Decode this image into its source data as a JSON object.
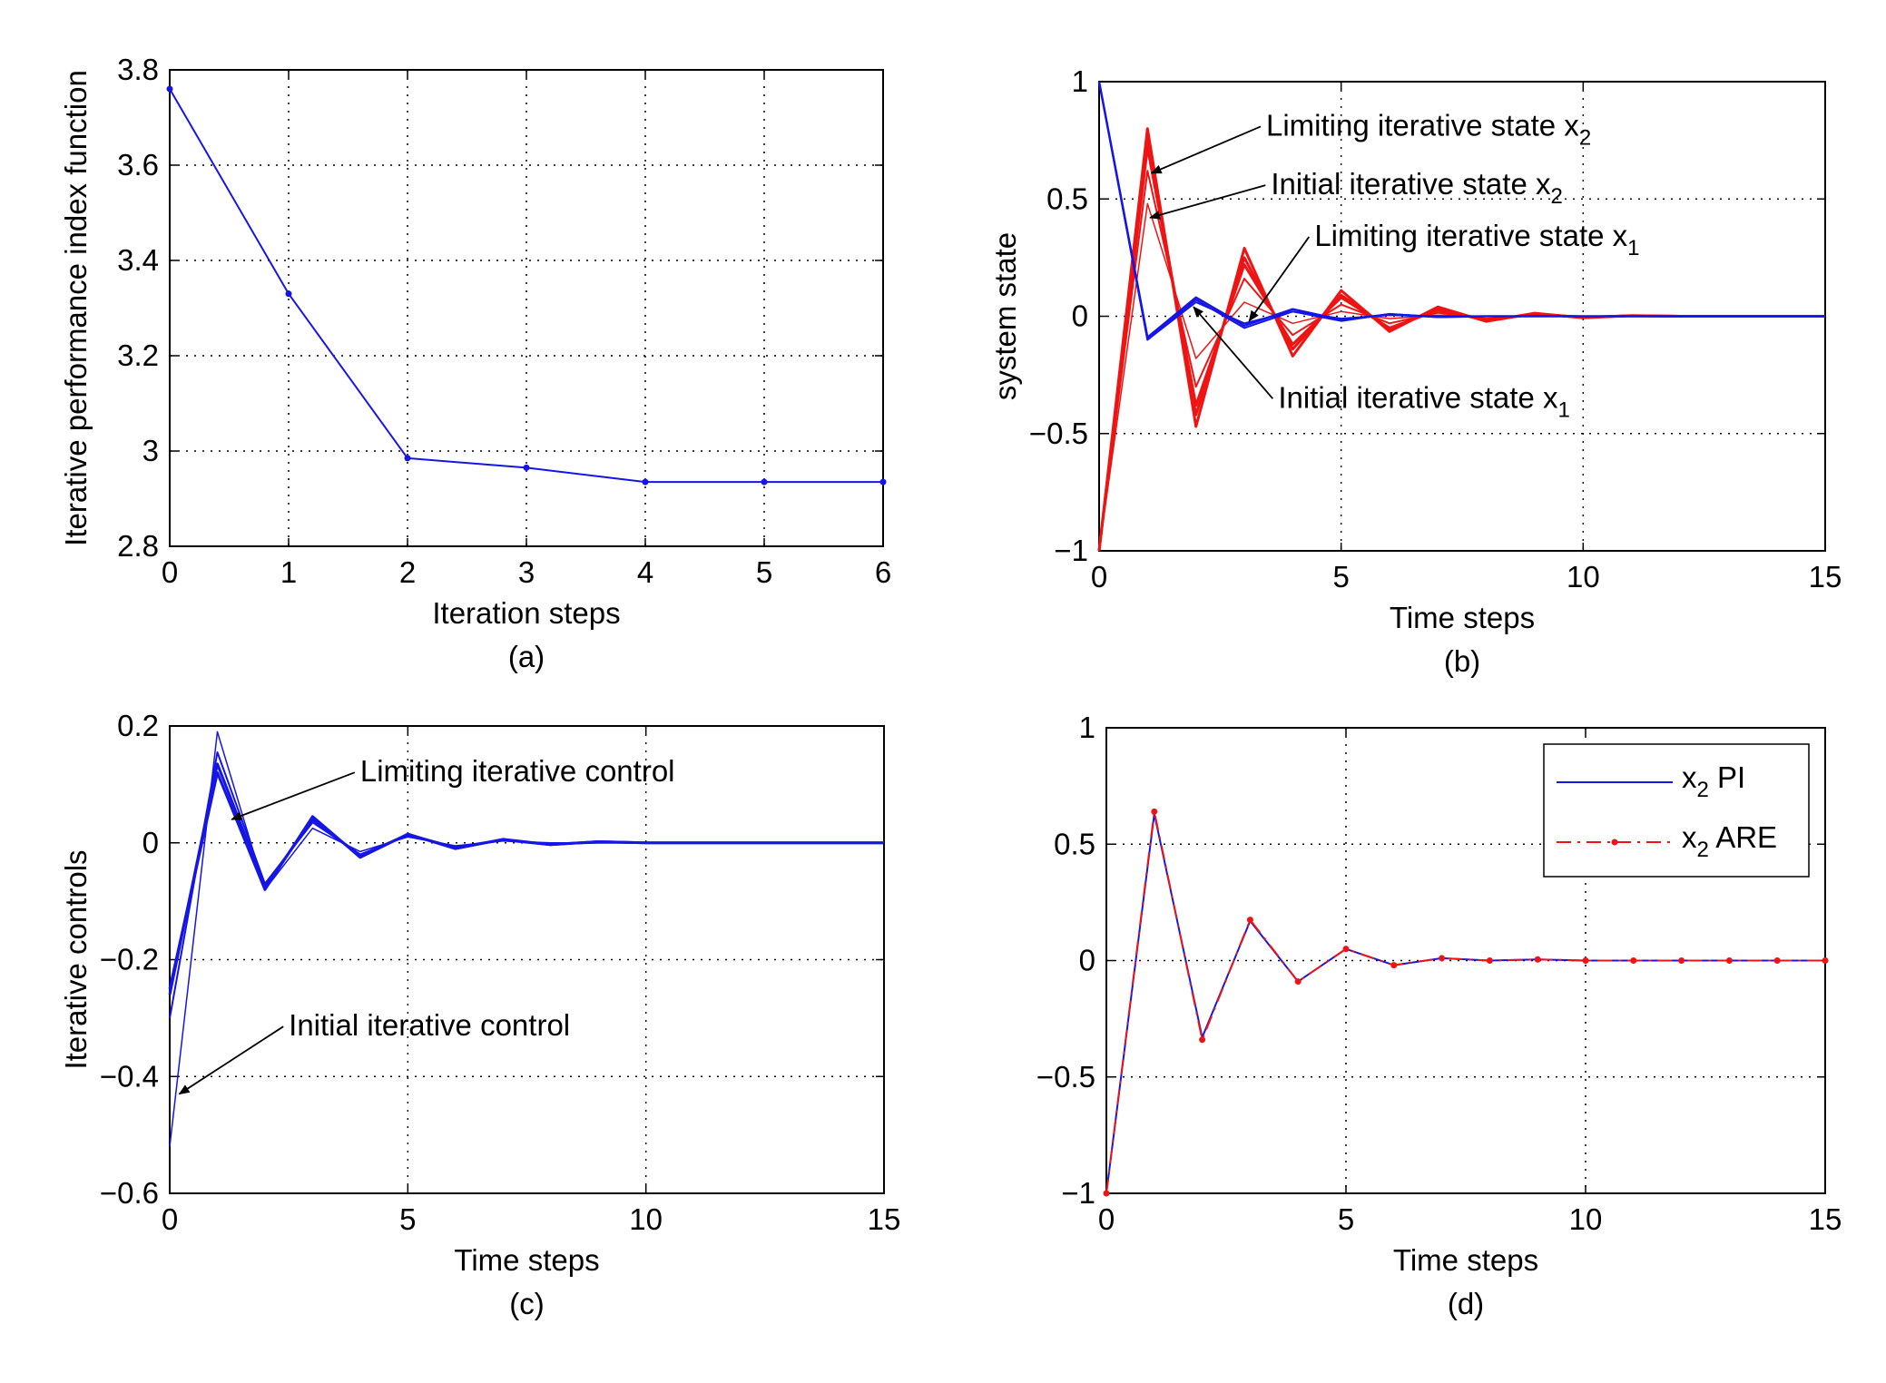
{
  "colors": {
    "blue": "#1515e6",
    "red": "#ee1414",
    "black": "#000000"
  },
  "chart_data": [
    {
      "id": "a",
      "type": "line",
      "caption": "(a)",
      "xlabel": "Iteration steps",
      "ylabel": "Iterative performance index function",
      "xlim": [
        0,
        6
      ],
      "ylim": [
        2.8,
        3.8
      ],
      "xticks": [
        0,
        1,
        2,
        3,
        4,
        5,
        6
      ],
      "xtick_labels": [
        "0",
        "1",
        "2",
        "3",
        "4",
        "5",
        "6"
      ],
      "yticks": [
        2.8,
        3.0,
        3.2,
        3.4,
        3.6,
        3.8
      ],
      "ytick_labels": [
        "2.8",
        "3",
        "3.2",
        "3.4",
        "3.6",
        "3.8"
      ],
      "grid": true,
      "series": [
        {
          "x": [
            0,
            1,
            2,
            3,
            4,
            5,
            6
          ],
          "y": [
            3.76,
            3.33,
            2.985,
            2.965,
            2.935,
            2.935,
            2.935
          ],
          "color": "blue",
          "width": 2,
          "markers": true
        }
      ]
    },
    {
      "id": "b",
      "type": "line",
      "caption": "(b)",
      "xlabel": "Time steps",
      "ylabel": "system state",
      "xlim": [
        0,
        15
      ],
      "ylim": [
        -1,
        1
      ],
      "xticks": [
        0,
        5,
        10,
        15
      ],
      "xtick_labels": [
        "0",
        "5",
        "10",
        "15"
      ],
      "yticks": [
        -1,
        -0.5,
        0,
        0.5,
        1
      ],
      "ytick_labels": [
        "−1",
        "−0.5",
        "0",
        "0.5",
        "1"
      ],
      "grid": true,
      "series": [
        {
          "x": [
            0,
            1,
            2,
            3,
            4,
            5,
            6,
            7,
            8,
            9,
            10,
            11,
            12,
            13,
            14,
            15
          ],
          "y": [
            -1,
            0.48,
            -0.18,
            0.06,
            -0.03,
            0.02,
            -0.01,
            0.005,
            0,
            0,
            0,
            0,
            0,
            0,
            0,
            0
          ],
          "color": "red",
          "width": 1.5
        },
        {
          "x": [
            0,
            1,
            2,
            3,
            4,
            5,
            6,
            7,
            8,
            9,
            10,
            11,
            12,
            13,
            14,
            15
          ],
          "y": [
            -1,
            0.62,
            -0.3,
            0.16,
            -0.08,
            0.05,
            -0.03,
            0.015,
            -0.01,
            0.005,
            0,
            0,
            0,
            0,
            0,
            0
          ],
          "color": "red",
          "width": 2
        },
        {
          "x": [
            0,
            1,
            2,
            3,
            4,
            5,
            6,
            7,
            8,
            9,
            10,
            11,
            12,
            13,
            14,
            15
          ],
          "y": [
            -1,
            0.72,
            -0.38,
            0.22,
            -0.12,
            0.08,
            -0.05,
            0.025,
            -0.015,
            0.008,
            -0.004,
            0.002,
            0,
            0,
            0,
            0
          ],
          "color": "red",
          "width": 3
        },
        {
          "x": [
            0,
            1,
            2,
            3,
            4,
            5,
            6,
            7,
            8,
            9,
            10,
            11,
            12,
            13,
            14,
            15
          ],
          "y": [
            -1,
            0.76,
            -0.42,
            0.25,
            -0.14,
            0.09,
            -0.055,
            0.03,
            -0.018,
            0.01,
            -0.005,
            0.002,
            0,
            0,
            0,
            0
          ],
          "color": "red",
          "width": 3
        },
        {
          "x": [
            0,
            1,
            2,
            3,
            4,
            5,
            6,
            7,
            8,
            9,
            10,
            11,
            12,
            13,
            14,
            15
          ],
          "y": [
            -1,
            0.8,
            -0.47,
            0.29,
            -0.17,
            0.11,
            -0.065,
            0.04,
            -0.022,
            0.013,
            -0.007,
            0.003,
            0,
            0,
            0,
            0
          ],
          "color": "red",
          "width": 3
        },
        {
          "x": [
            0,
            1,
            2,
            3,
            4,
            5,
            6,
            7,
            8,
            9,
            10,
            11,
            12,
            13,
            14,
            15
          ],
          "y": [
            1,
            -0.1,
            0.06,
            -0.03,
            0.02,
            -0.01,
            0.005,
            0,
            0,
            0,
            0,
            0,
            0,
            0,
            0,
            0
          ],
          "color": "blue",
          "width": 2
        },
        {
          "x": [
            0,
            1,
            2,
            3,
            4,
            5,
            6,
            7,
            8,
            9,
            10,
            11,
            12,
            13,
            14,
            15
          ],
          "y": [
            1,
            -0.09,
            0.08,
            -0.04,
            0.03,
            -0.015,
            0.008,
            -0.003,
            0,
            0,
            0,
            0,
            0,
            0,
            0,
            0
          ],
          "color": "blue",
          "width": 2.5
        },
        {
          "x": [
            0,
            1,
            2,
            3,
            4,
            5,
            6,
            7,
            8,
            9,
            10,
            11,
            12,
            13,
            14,
            15
          ],
          "y": [
            1,
            -0.1,
            0.07,
            -0.05,
            0.02,
            -0.02,
            0.01,
            -0.004,
            0,
            0,
            0,
            0,
            0,
            0,
            0,
            0
          ],
          "color": "blue",
          "width": 2
        }
      ],
      "annotations": [
        {
          "text": "Limiting iterative state x",
          "sub": "2",
          "text_pos": [
            3.45,
            0.77
          ],
          "arrow_to": [
            1.08,
            0.61
          ]
        },
        {
          "text": "Initial iterative state x",
          "sub": "2",
          "text_pos": [
            3.55,
            0.52
          ],
          "arrow_to": [
            1.05,
            0.42
          ]
        },
        {
          "text": "Limiting iterative state x",
          "sub": "1",
          "text_pos": [
            4.45,
            0.3
          ],
          "arrow_to": [
            3.1,
            -0.02
          ]
        },
        {
          "text": "Initial iterative state x",
          "sub": "1",
          "text_pos": [
            3.7,
            -0.39
          ],
          "arrow_to": [
            1.95,
            0.04
          ]
        }
      ]
    },
    {
      "id": "c",
      "type": "line",
      "caption": "(c)",
      "xlabel": "Time steps",
      "ylabel": "Iterative controls",
      "xlim": [
        0,
        15
      ],
      "ylim": [
        -0.6,
        0.2
      ],
      "xticks": [
        0,
        5,
        10,
        15
      ],
      "xtick_labels": [
        "0",
        "5",
        "10",
        "15"
      ],
      "yticks": [
        -0.6,
        -0.4,
        -0.2,
        0,
        0.2
      ],
      "ytick_labels": [
        "−0.6",
        "−0.4",
        "−0.2",
        "0",
        "0.2"
      ],
      "grid": true,
      "series": [
        {
          "x": [
            0,
            1,
            2,
            3,
            4,
            5,
            6,
            7,
            8,
            9,
            10,
            11,
            12,
            13,
            14,
            15
          ],
          "y": [
            -0.52,
            0.19,
            -0.08,
            0.025,
            -0.015,
            0.01,
            -0.005,
            0.003,
            0,
            0,
            0,
            0,
            0,
            0,
            0,
            0
          ],
          "color": "blue",
          "width": 1.5
        },
        {
          "x": [
            0,
            1,
            2,
            3,
            4,
            5,
            6,
            7,
            8,
            9,
            10,
            11,
            12,
            13,
            14,
            15
          ],
          "y": [
            -0.3,
            0.155,
            -0.07,
            0.035,
            -0.02,
            0.012,
            -0.007,
            0.004,
            -0.002,
            0,
            0,
            0,
            0,
            0,
            0,
            0
          ],
          "color": "blue",
          "width": 2
        },
        {
          "x": [
            0,
            1,
            2,
            3,
            4,
            5,
            6,
            7,
            8,
            9,
            10,
            11,
            12,
            13,
            14,
            15
          ],
          "y": [
            -0.26,
            0.135,
            -0.075,
            0.04,
            -0.022,
            0.014,
            -0.008,
            0.005,
            -0.003,
            0.002,
            0,
            0,
            0,
            0,
            0,
            0
          ],
          "color": "blue",
          "width": 3
        },
        {
          "x": [
            0,
            1,
            2,
            3,
            4,
            5,
            6,
            7,
            8,
            9,
            10,
            11,
            12,
            13,
            14,
            15
          ],
          "y": [
            -0.25,
            0.12,
            -0.08,
            0.045,
            -0.025,
            0.015,
            -0.01,
            0.006,
            -0.003,
            0.002,
            0,
            0,
            0,
            0,
            0,
            0
          ],
          "color": "blue",
          "width": 3
        }
      ],
      "annotations": [
        {
          "text": "Limiting iterative control",
          "sub": "",
          "text_pos": [
            4.0,
            0.105
          ],
          "arrow_to": [
            1.3,
            0.04
          ]
        },
        {
          "text": "Initial iterative control",
          "sub": "",
          "text_pos": [
            2.5,
            -0.33
          ],
          "arrow_to": [
            0.2,
            -0.43
          ]
        }
      ]
    },
    {
      "id": "d",
      "type": "line",
      "caption": "(d)",
      "xlabel": "Time steps",
      "ylabel": "",
      "xlim": [
        0,
        15
      ],
      "ylim": [
        -1,
        1
      ],
      "xticks": [
        0,
        5,
        10,
        15
      ],
      "xtick_labels": [
        "0",
        "5",
        "10",
        "15"
      ],
      "yticks": [
        -1,
        -0.5,
        0,
        0.5,
        1
      ],
      "ytick_labels": [
        "−1",
        "−0.5",
        "0",
        "0.5",
        "1"
      ],
      "grid": true,
      "legend_position": "top-right",
      "series": [
        {
          "name": "x2 PI",
          "label_main": "x",
          "label_sub": "2",
          "label_rest": " PI",
          "x": [
            0,
            1,
            2,
            3,
            4,
            5,
            6,
            7,
            8,
            9,
            10,
            11,
            12,
            13,
            14,
            15
          ],
          "y": [
            -1,
            0.63,
            -0.33,
            0.17,
            -0.09,
            0.05,
            -0.02,
            0.01,
            0,
            0.005,
            0,
            0,
            0,
            0,
            0,
            0
          ],
          "color": "blue",
          "width": 2,
          "style": "solid"
        },
        {
          "name": "x2 ARE",
          "label_main": "x",
          "label_sub": "2",
          "label_rest": " ARE",
          "x": [
            0,
            1,
            2,
            3,
            4,
            5,
            6,
            7,
            8,
            9,
            10,
            11,
            12,
            13,
            14,
            15
          ],
          "y": [
            -1,
            0.64,
            -0.34,
            0.175,
            -0.09,
            0.05,
            -0.02,
            0.01,
            0,
            0.005,
            0,
            0,
            0,
            0,
            0,
            0
          ],
          "color": "red",
          "width": 2,
          "style": "dashdot",
          "markers": true
        }
      ]
    }
  ]
}
